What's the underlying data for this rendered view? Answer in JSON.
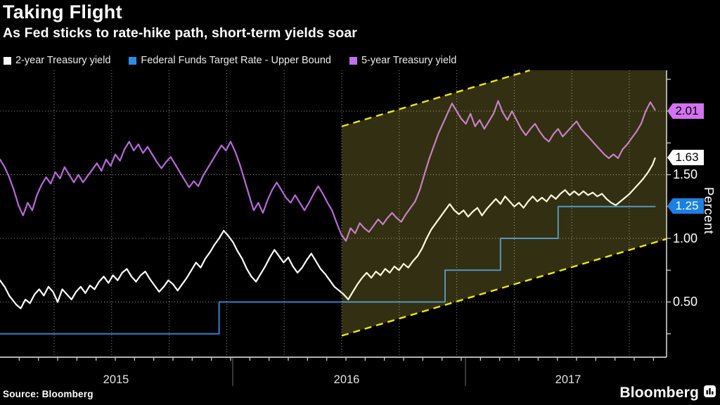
{
  "header": {
    "title": "Taking Flight",
    "subtitle": "As Fed sticks to rate-hike path, short-term yields soar"
  },
  "legend": [
    {
      "label": "2-year Treasury yield",
      "color": "#ffffff"
    },
    {
      "label": "Federal Funds Target Rate - Upper Bound",
      "color": "#2b8ce8"
    },
    {
      "label": "5-year Treasury yield",
      "color": "#c46ff0"
    }
  ],
  "y_axis": {
    "unit_label": "Percent",
    "tick_labels": [
      "1.50",
      "1.00",
      "0.50"
    ],
    "badges": [
      {
        "value": "2.01",
        "bg": "#d473f2",
        "fg": "#000000"
      },
      {
        "value": "1.63",
        "bg": "#ffffff",
        "fg": "#000000"
      },
      {
        "value": "1.25",
        "bg": "#1a80e1",
        "fg": "#ffffff"
      }
    ]
  },
  "x_axis": {
    "years": [
      "2015",
      "2016",
      "2017"
    ]
  },
  "footer": {
    "source": "Source: Bloomberg",
    "brand": "Bloomberg"
  },
  "chart_data": {
    "type": "line",
    "title": "Taking Flight",
    "subtitle": "As Fed sticks to rate-hike path, short-term yields soar",
    "x_unit": "years since Jan 2015 (decimal)",
    "x_range": [
      0,
      2.89
    ],
    "y_range": [
      0.07,
      2.32
    ],
    "ylabel": "Percent",
    "y_gridlines": [
      0.5,
      1.0,
      1.5,
      2.0
    ],
    "y_tick_step": 0.25,
    "grid": "dotted",
    "legend_position": "top",
    "series": [
      {
        "name": "2-year Treasury yield",
        "color": "#ffffff",
        "width": 2.2,
        "end_label": "1.63",
        "points": [
          [
            0.0,
            0.67
          ],
          [
            0.02,
            0.62
          ],
          [
            0.04,
            0.55
          ],
          [
            0.07,
            0.48
          ],
          [
            0.09,
            0.45
          ],
          [
            0.11,
            0.52
          ],
          [
            0.13,
            0.49
          ],
          [
            0.15,
            0.56
          ],
          [
            0.17,
            0.6
          ],
          [
            0.19,
            0.55
          ],
          [
            0.21,
            0.62
          ],
          [
            0.23,
            0.58
          ],
          [
            0.25,
            0.5
          ],
          [
            0.27,
            0.6
          ],
          [
            0.29,
            0.56
          ],
          [
            0.31,
            0.52
          ],
          [
            0.33,
            0.58
          ],
          [
            0.35,
            0.62
          ],
          [
            0.37,
            0.57
          ],
          [
            0.39,
            0.63
          ],
          [
            0.41,
            0.6
          ],
          [
            0.43,
            0.66
          ],
          [
            0.45,
            0.7
          ],
          [
            0.47,
            0.65
          ],
          [
            0.49,
            0.71
          ],
          [
            0.51,
            0.67
          ],
          [
            0.53,
            0.73
          ],
          [
            0.55,
            0.76
          ],
          [
            0.57,
            0.7
          ],
          [
            0.59,
            0.66
          ],
          [
            0.61,
            0.71
          ],
          [
            0.63,
            0.74
          ],
          [
            0.65,
            0.68
          ],
          [
            0.67,
            0.63
          ],
          [
            0.69,
            0.58
          ],
          [
            0.71,
            0.62
          ],
          [
            0.73,
            0.67
          ],
          [
            0.75,
            0.64
          ],
          [
            0.77,
            0.59
          ],
          [
            0.79,
            0.64
          ],
          [
            0.81,
            0.69
          ],
          [
            0.83,
            0.75
          ],
          [
            0.85,
            0.81
          ],
          [
            0.87,
            0.77
          ],
          [
            0.89,
            0.84
          ],
          [
            0.91,
            0.89
          ],
          [
            0.93,
            0.95
          ],
          [
            0.95,
            1.0
          ],
          [
            0.97,
            1.06
          ],
          [
            0.99,
            1.02
          ],
          [
            1.01,
            0.97
          ],
          [
            1.03,
            0.9
          ],
          [
            1.05,
            0.84
          ],
          [
            1.07,
            0.76
          ],
          [
            1.09,
            0.7
          ],
          [
            1.11,
            0.66
          ],
          [
            1.13,
            0.72
          ],
          [
            1.15,
            0.78
          ],
          [
            1.17,
            0.85
          ],
          [
            1.19,
            0.91
          ],
          [
            1.21,
            0.86
          ],
          [
            1.23,
            0.81
          ],
          [
            1.25,
            0.85
          ],
          [
            1.27,
            0.78
          ],
          [
            1.29,
            0.73
          ],
          [
            1.31,
            0.77
          ],
          [
            1.33,
            0.83
          ],
          [
            1.35,
            0.88
          ],
          [
            1.37,
            0.82
          ],
          [
            1.39,
            0.76
          ],
          [
            1.41,
            0.72
          ],
          [
            1.43,
            0.67
          ],
          [
            1.45,
            0.62
          ],
          [
            1.47,
            0.59
          ],
          [
            1.49,
            0.56
          ],
          [
            1.51,
            0.52
          ],
          [
            1.53,
            0.58
          ],
          [
            1.55,
            0.64
          ],
          [
            1.57,
            0.69
          ],
          [
            1.59,
            0.73
          ],
          [
            1.61,
            0.69
          ],
          [
            1.63,
            0.74
          ],
          [
            1.65,
            0.71
          ],
          [
            1.67,
            0.76
          ],
          [
            1.69,
            0.73
          ],
          [
            1.71,
            0.78
          ],
          [
            1.73,
            0.75
          ],
          [
            1.75,
            0.8
          ],
          [
            1.77,
            0.77
          ],
          [
            1.79,
            0.82
          ],
          [
            1.81,
            0.86
          ],
          [
            1.83,
            0.92
          ],
          [
            1.85,
            1.0
          ],
          [
            1.87,
            1.07
          ],
          [
            1.89,
            1.12
          ],
          [
            1.91,
            1.17
          ],
          [
            1.93,
            1.22
          ],
          [
            1.95,
            1.27
          ],
          [
            1.97,
            1.22
          ],
          [
            1.99,
            1.19
          ],
          [
            2.01,
            1.22
          ],
          [
            2.03,
            1.17
          ],
          [
            2.05,
            1.21
          ],
          [
            2.07,
            1.24
          ],
          [
            2.09,
            1.18
          ],
          [
            2.11,
            1.23
          ],
          [
            2.13,
            1.27
          ],
          [
            2.15,
            1.31
          ],
          [
            2.17,
            1.27
          ],
          [
            2.19,
            1.33
          ],
          [
            2.21,
            1.29
          ],
          [
            2.23,
            1.25
          ],
          [
            2.25,
            1.28
          ],
          [
            2.27,
            1.24
          ],
          [
            2.29,
            1.29
          ],
          [
            2.31,
            1.33
          ],
          [
            2.33,
            1.29
          ],
          [
            2.35,
            1.32
          ],
          [
            2.37,
            1.29
          ],
          [
            2.39,
            1.34
          ],
          [
            2.41,
            1.31
          ],
          [
            2.43,
            1.35
          ],
          [
            2.45,
            1.38
          ],
          [
            2.47,
            1.34
          ],
          [
            2.49,
            1.37
          ],
          [
            2.51,
            1.34
          ],
          [
            2.53,
            1.37
          ],
          [
            2.55,
            1.34
          ],
          [
            2.57,
            1.36
          ],
          [
            2.59,
            1.33
          ],
          [
            2.61,
            1.35
          ],
          [
            2.63,
            1.31
          ],
          [
            2.65,
            1.28
          ],
          [
            2.67,
            1.26
          ],
          [
            2.69,
            1.29
          ],
          [
            2.71,
            1.32
          ],
          [
            2.73,
            1.35
          ],
          [
            2.75,
            1.39
          ],
          [
            2.77,
            1.43
          ],
          [
            2.79,
            1.47
          ],
          [
            2.81,
            1.52
          ],
          [
            2.83,
            1.58
          ],
          [
            2.84,
            1.63
          ]
        ]
      },
      {
        "name": "Federal Funds Target Rate - Upper Bound",
        "color": "#2b82d6",
        "width": 2,
        "end_label": "1.25",
        "points": [
          [
            0.0,
            0.25
          ],
          [
            0.95,
            0.25
          ],
          [
            0.95,
            0.5
          ],
          [
            1.93,
            0.5
          ],
          [
            1.93,
            0.75
          ],
          [
            2.17,
            0.75
          ],
          [
            2.17,
            1.0
          ],
          [
            2.42,
            1.0
          ],
          [
            2.42,
            1.25
          ],
          [
            2.84,
            1.25
          ]
        ]
      },
      {
        "name": "5-year Treasury yield",
        "color": "#b967dc",
        "width": 2.2,
        "end_label": "2.01",
        "points": [
          [
            0.0,
            1.62
          ],
          [
            0.02,
            1.56
          ],
          [
            0.04,
            1.48
          ],
          [
            0.06,
            1.38
          ],
          [
            0.08,
            1.26
          ],
          [
            0.1,
            1.18
          ],
          [
            0.12,
            1.28
          ],
          [
            0.14,
            1.22
          ],
          [
            0.16,
            1.34
          ],
          [
            0.18,
            1.42
          ],
          [
            0.2,
            1.48
          ],
          [
            0.22,
            1.43
          ],
          [
            0.24,
            1.52
          ],
          [
            0.26,
            1.47
          ],
          [
            0.28,
            1.56
          ],
          [
            0.3,
            1.5
          ],
          [
            0.32,
            1.44
          ],
          [
            0.34,
            1.5
          ],
          [
            0.36,
            1.44
          ],
          [
            0.38,
            1.49
          ],
          [
            0.4,
            1.54
          ],
          [
            0.42,
            1.59
          ],
          [
            0.44,
            1.53
          ],
          [
            0.46,
            1.62
          ],
          [
            0.48,
            1.57
          ],
          [
            0.5,
            1.66
          ],
          [
            0.52,
            1.61
          ],
          [
            0.54,
            1.7
          ],
          [
            0.56,
            1.76
          ],
          [
            0.58,
            1.69
          ],
          [
            0.6,
            1.74
          ],
          [
            0.62,
            1.67
          ],
          [
            0.64,
            1.72
          ],
          [
            0.66,
            1.66
          ],
          [
            0.68,
            1.6
          ],
          [
            0.7,
            1.55
          ],
          [
            0.72,
            1.6
          ],
          [
            0.74,
            1.64
          ],
          [
            0.76,
            1.58
          ],
          [
            0.78,
            1.52
          ],
          [
            0.8,
            1.46
          ],
          [
            0.82,
            1.4
          ],
          [
            0.84,
            1.45
          ],
          [
            0.86,
            1.41
          ],
          [
            0.88,
            1.49
          ],
          [
            0.9,
            1.55
          ],
          [
            0.92,
            1.61
          ],
          [
            0.94,
            1.67
          ],
          [
            0.96,
            1.73
          ],
          [
            0.98,
            1.69
          ],
          [
            1.0,
            1.76
          ],
          [
            1.02,
            1.68
          ],
          [
            1.04,
            1.58
          ],
          [
            1.06,
            1.46
          ],
          [
            1.08,
            1.34
          ],
          [
            1.1,
            1.22
          ],
          [
            1.12,
            1.28
          ],
          [
            1.14,
            1.2
          ],
          [
            1.16,
            1.3
          ],
          [
            1.18,
            1.38
          ],
          [
            1.2,
            1.44
          ],
          [
            1.22,
            1.38
          ],
          [
            1.24,
            1.32
          ],
          [
            1.26,
            1.28
          ],
          [
            1.28,
            1.34
          ],
          [
            1.3,
            1.28
          ],
          [
            1.32,
            1.22
          ],
          [
            1.34,
            1.28
          ],
          [
            1.36,
            1.35
          ],
          [
            1.38,
            1.41
          ],
          [
            1.4,
            1.35
          ],
          [
            1.42,
            1.28
          ],
          [
            1.44,
            1.22
          ],
          [
            1.46,
            1.12
          ],
          [
            1.48,
            1.03
          ],
          [
            1.5,
            0.98
          ],
          [
            1.52,
            1.08
          ],
          [
            1.54,
            1.04
          ],
          [
            1.56,
            1.12
          ],
          [
            1.58,
            1.08
          ],
          [
            1.6,
            1.05
          ],
          [
            1.62,
            1.1
          ],
          [
            1.64,
            1.15
          ],
          [
            1.66,
            1.11
          ],
          [
            1.68,
            1.16
          ],
          [
            1.7,
            1.2
          ],
          [
            1.72,
            1.16
          ],
          [
            1.74,
            1.13
          ],
          [
            1.76,
            1.19
          ],
          [
            1.78,
            1.24
          ],
          [
            1.8,
            1.29
          ],
          [
            1.82,
            1.38
          ],
          [
            1.84,
            1.5
          ],
          [
            1.86,
            1.62
          ],
          [
            1.88,
            1.72
          ],
          [
            1.9,
            1.82
          ],
          [
            1.92,
            1.9
          ],
          [
            1.94,
            1.98
          ],
          [
            1.96,
            2.06
          ],
          [
            1.98,
            2.0
          ],
          [
            2.0,
            1.94
          ],
          [
            2.02,
            1.9
          ],
          [
            2.04,
            1.98
          ],
          [
            2.06,
            1.88
          ],
          [
            2.08,
            1.93
          ],
          [
            2.1,
            1.86
          ],
          [
            2.12,
            1.92
          ],
          [
            2.14,
            1.98
          ],
          [
            2.16,
            2.08
          ],
          [
            2.18,
            1.99
          ],
          [
            2.2,
            1.93
          ],
          [
            2.22,
            2.0
          ],
          [
            2.24,
            1.93
          ],
          [
            2.26,
            1.86
          ],
          [
            2.28,
            1.81
          ],
          [
            2.3,
            1.86
          ],
          [
            2.32,
            1.9
          ],
          [
            2.34,
            1.84
          ],
          [
            2.36,
            1.79
          ],
          [
            2.38,
            1.76
          ],
          [
            2.4,
            1.82
          ],
          [
            2.42,
            1.86
          ],
          [
            2.44,
            1.8
          ],
          [
            2.46,
            1.84
          ],
          [
            2.48,
            1.88
          ],
          [
            2.5,
            1.92
          ],
          [
            2.52,
            1.86
          ],
          [
            2.54,
            1.82
          ],
          [
            2.56,
            1.78
          ],
          [
            2.58,
            1.74
          ],
          [
            2.6,
            1.7
          ],
          [
            2.62,
            1.66
          ],
          [
            2.64,
            1.63
          ],
          [
            2.66,
            1.66
          ],
          [
            2.68,
            1.63
          ],
          [
            2.7,
            1.7
          ],
          [
            2.72,
            1.74
          ],
          [
            2.74,
            1.79
          ],
          [
            2.76,
            1.84
          ],
          [
            2.78,
            1.9
          ],
          [
            2.8,
            2.0
          ],
          [
            2.82,
            2.07
          ],
          [
            2.84,
            2.01
          ]
        ]
      }
    ],
    "highlight_band": {
      "t_start": 1.482,
      "t_end": 2.89,
      "top_start": 1.88,
      "bottom_start": 0.235,
      "rise_per_year": 0.54,
      "fill": "rgba(250,235,90,0.20)",
      "border_color": "#f0e900",
      "border_style": "dashed"
    }
  }
}
